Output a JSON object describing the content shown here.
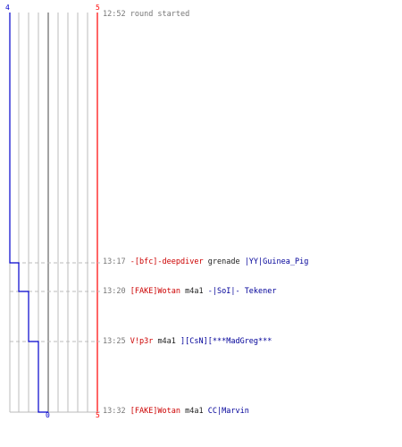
{
  "score": {
    "blue_top": "4",
    "red_top": "5",
    "bottom_mid": "0",
    "red_bottom": "5"
  },
  "colors": {
    "blue_team": "#0000cc",
    "red_team": "#ff0000",
    "grid": "#bbbbbb",
    "center_line": "#666666",
    "dashed": "#bbbbbb"
  },
  "events": [
    {
      "time": "12:52",
      "message": "round started"
    },
    {
      "time": "13:17",
      "killer": "-[bfc]-deepdiver",
      "weapon": "grenade",
      "victim": "|YY|Guinea_Pig"
    },
    {
      "time": "13:20",
      "killer": "[FAKE]Wotan",
      "weapon": "m4a1",
      "victim": "-|SoI|- Tekener"
    },
    {
      "time": "13:25",
      "killer": "V!p3r",
      "weapon": "m4a1",
      "victim": "][CsN][***MadGreg***"
    },
    {
      "time": "13:32",
      "killer": "[FAKE]Wotan",
      "weapon": "m4a1",
      "victim": "CC|Marvin"
    }
  ]
}
